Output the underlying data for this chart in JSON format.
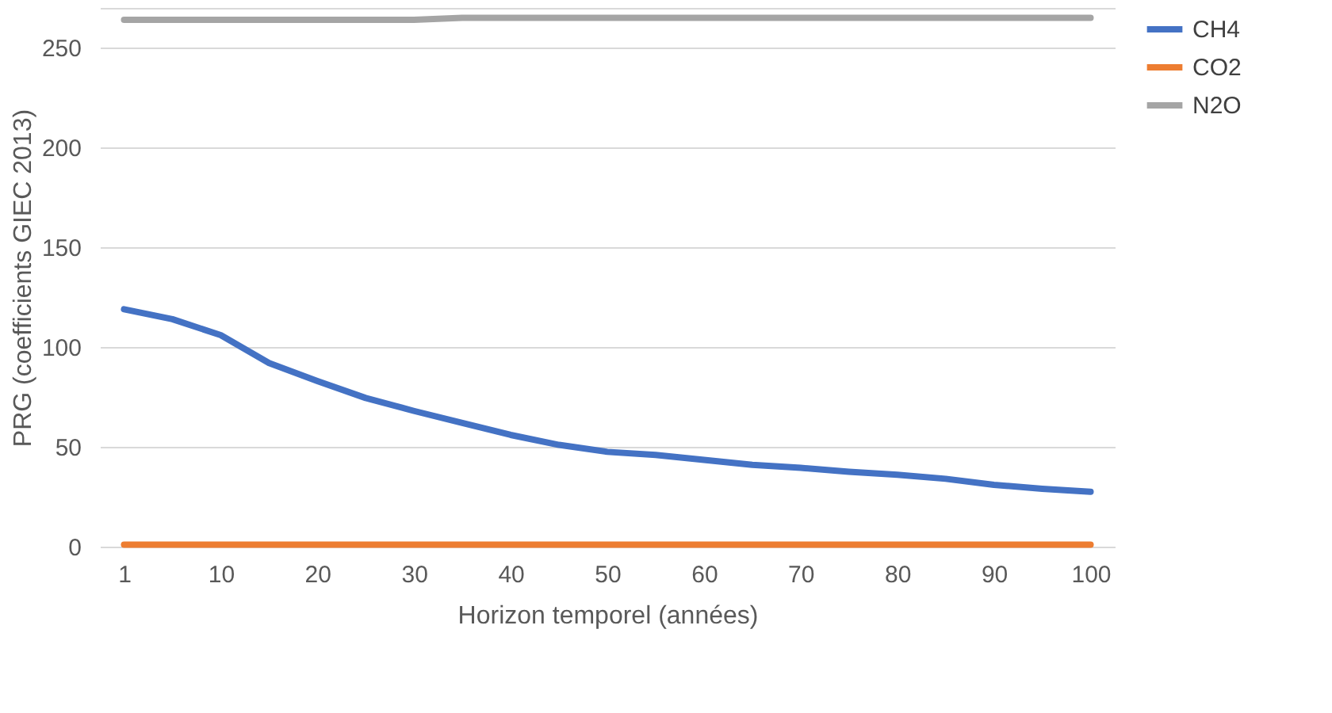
{
  "chart_data": {
    "type": "line",
    "xlabel": "Horizon temporel (années)",
    "ylabel": "PRG (coefficients GIEC 2013)",
    "categories": [
      "1",
      null,
      "10",
      null,
      "20",
      null,
      "30",
      null,
      "40",
      null,
      "50",
      null,
      "60",
      null,
      "70",
      null,
      "80",
      null,
      "90",
      null,
      "100"
    ],
    "series": [
      {
        "name": "CH4",
        "color": "#4472c4",
        "values": [
          119,
          114,
          106,
          92,
          83,
          74.5,
          68,
          62,
          56,
          51,
          47.5,
          46,
          43.5,
          41,
          39.5,
          37.5,
          36,
          34,
          31,
          29,
          27.5
        ]
      },
      {
        "name": "CO2",
        "color": "#ed7d31",
        "values": [
          1,
          1,
          1,
          1,
          1,
          1,
          1,
          1,
          1,
          1,
          1,
          1,
          1,
          1,
          1,
          1,
          1,
          1,
          1,
          1,
          1
        ]
      },
      {
        "name": "N2O",
        "color": "#a5a5a5",
        "values": [
          264,
          264,
          264,
          264,
          264,
          264,
          264,
          265,
          265,
          265,
          265,
          265,
          265,
          265,
          265,
          265,
          265,
          265,
          265,
          265,
          265
        ]
      }
    ],
    "ylim": [
      0,
      270
    ],
    "yticks": [
      0,
      50,
      100,
      150,
      200,
      250,
      {
        "value": 270,
        "label": null
      }
    ],
    "grid": "y",
    "legend": "right",
    "marker": "none",
    "line_style": "solid"
  }
}
